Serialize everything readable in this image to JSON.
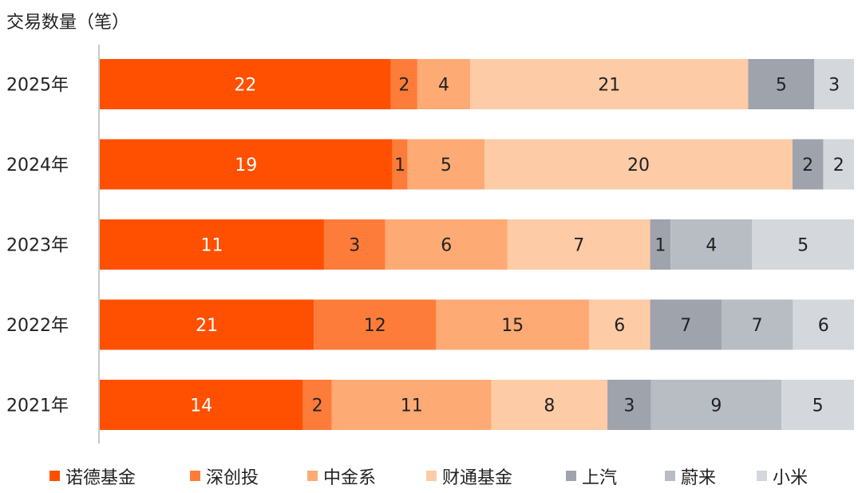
{
  "chart_data": {
    "type": "bar",
    "orientation": "horizontal",
    "stacked": true,
    "ylabel": "交易数量（笔）",
    "categories": [
      "2025年",
      "2024年",
      "2023年",
      "2022年",
      "2021年"
    ],
    "series": [
      {
        "name": "诺德基金",
        "values": [
          22,
          19,
          11,
          21,
          14
        ],
        "color": "#fe5000",
        "label_color": "#ffffff"
      },
      {
        "name": "深创投",
        "values": [
          2,
          1,
          3,
          12,
          2
        ],
        "color": "#fe7c3a",
        "label_color": "#222222"
      },
      {
        "name": "中金系",
        "values": [
          4,
          5,
          6,
          15,
          11
        ],
        "color": "#fdaa74",
        "label_color": "#222222"
      },
      {
        "name": "财通基金",
        "values": [
          21,
          20,
          7,
          6,
          8
        ],
        "color": "#fdcba6",
        "label_color": "#222222"
      },
      {
        "name": "上汽",
        "values": [
          5,
          2,
          1,
          7,
          3
        ],
        "color": "#9fa3ac",
        "label_color": "#222222"
      },
      {
        "name": "蔚来",
        "values": [
          0,
          0,
          4,
          7,
          9
        ],
        "color": "#b8bcc3",
        "label_color": "#222222"
      },
      {
        "name": "小米",
        "values": [
          3,
          2,
          5,
          6,
          5
        ],
        "color": "#d4d7db",
        "label_color": "#222222"
      }
    ],
    "legend_position": "bottom",
    "grid": false
  }
}
